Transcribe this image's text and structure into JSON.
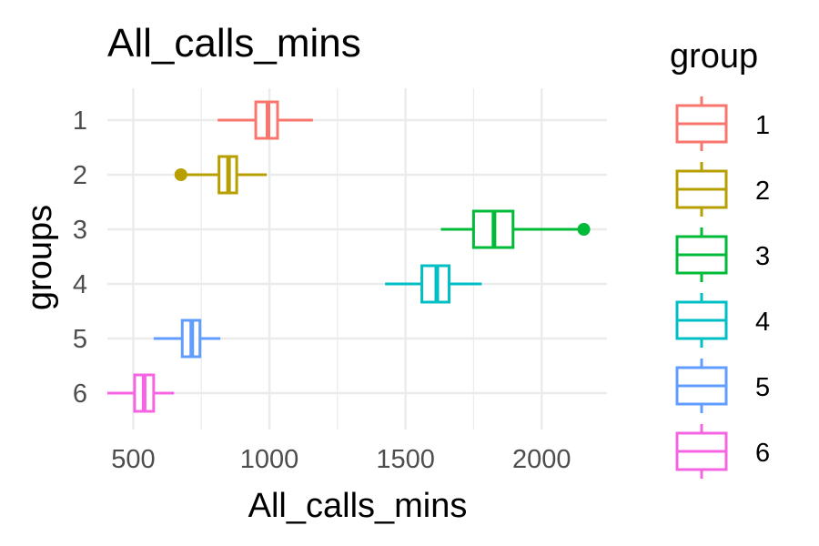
{
  "chart_data": {
    "type": "boxplot",
    "orientation": "horizontal",
    "title": "All_calls_mins",
    "xlabel": "All_calls_mins",
    "ylabel": "groups",
    "xlim": [
      405,
      2240
    ],
    "x_ticks": [
      500,
      1000,
      1500,
      2000
    ],
    "x_tick_labels": [
      "500",
      "1000",
      "1500",
      "2000"
    ],
    "categories": [
      "1",
      "2",
      "3",
      "4",
      "5",
      "6"
    ],
    "grid": true,
    "legend": {
      "title": "group",
      "position": "right"
    },
    "series": [
      {
        "name": "1",
        "color": "#F8766D",
        "whisker_low": 810,
        "q1": 950,
        "median": 995,
        "q3": 1030,
        "whisker_high": 1160,
        "outliers": []
      },
      {
        "name": "2",
        "color": "#B79F00",
        "whisker_low": 680,
        "q1": 815,
        "median": 850,
        "q3": 880,
        "whisker_high": 990,
        "outliers": [
          675
        ]
      },
      {
        "name": "3",
        "color": "#00BA38",
        "whisker_low": 1630,
        "q1": 1750,
        "median": 1825,
        "q3": 1895,
        "whisker_high": 2150,
        "outliers": [
          2155
        ]
      },
      {
        "name": "4",
        "color": "#00BFC4",
        "whisker_low": 1425,
        "q1": 1560,
        "median": 1615,
        "q3": 1660,
        "whisker_high": 1780,
        "outliers": []
      },
      {
        "name": "5",
        "color": "#619CFF",
        "whisker_low": 575,
        "q1": 680,
        "median": 715,
        "q3": 745,
        "whisker_high": 820,
        "outliers": []
      },
      {
        "name": "6",
        "color": "#F564E3",
        "whisker_low": 405,
        "q1": 505,
        "median": 540,
        "q3": 575,
        "whisker_high": 650,
        "outliers": []
      }
    ]
  }
}
